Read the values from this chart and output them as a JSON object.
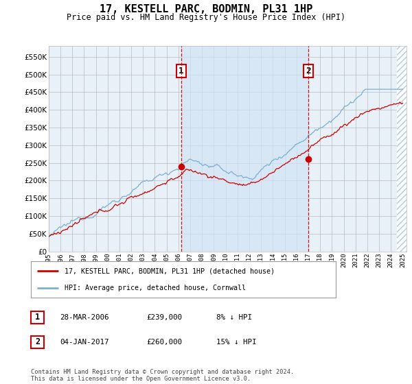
{
  "title": "17, KESTELL PARC, BODMIN, PL31 1HP",
  "subtitle": "Price paid vs. HM Land Registry's House Price Index (HPI)",
  "yticks": [
    0,
    50000,
    100000,
    150000,
    200000,
    250000,
    300000,
    350000,
    400000,
    450000,
    500000,
    550000
  ],
  "ylim": [
    0,
    580000
  ],
  "xlim_start": 1995.0,
  "xlim_end": 2025.3,
  "purchase1_date": 2006.23,
  "purchase1_price": 239000,
  "purchase2_date": 2017.01,
  "purchase2_price": 260000,
  "hpi_color": "#7bafd4",
  "price_color": "#cc0000",
  "box_color": "#cc0000",
  "legend_label1": "17, KESTELL PARC, BODMIN, PL31 1HP (detached house)",
  "legend_label2": "HPI: Average price, detached house, Cornwall",
  "table_row1": [
    "1",
    "28-MAR-2006",
    "£239,000",
    "8% ↓ HPI"
  ],
  "table_row2": [
    "2",
    "04-JAN-2017",
    "£260,000",
    "15% ↓ HPI"
  ],
  "footer": "Contains HM Land Registry data © Crown copyright and database right 2024.\nThis data is licensed under the Open Government Licence v3.0.",
  "bg_color": "#e8f0f8",
  "highlight_color": "#d0e4f4",
  "grid_color": "#bbbbbb",
  "dashed_color": "#cc0000",
  "hatch_color": "#b0c8e0"
}
